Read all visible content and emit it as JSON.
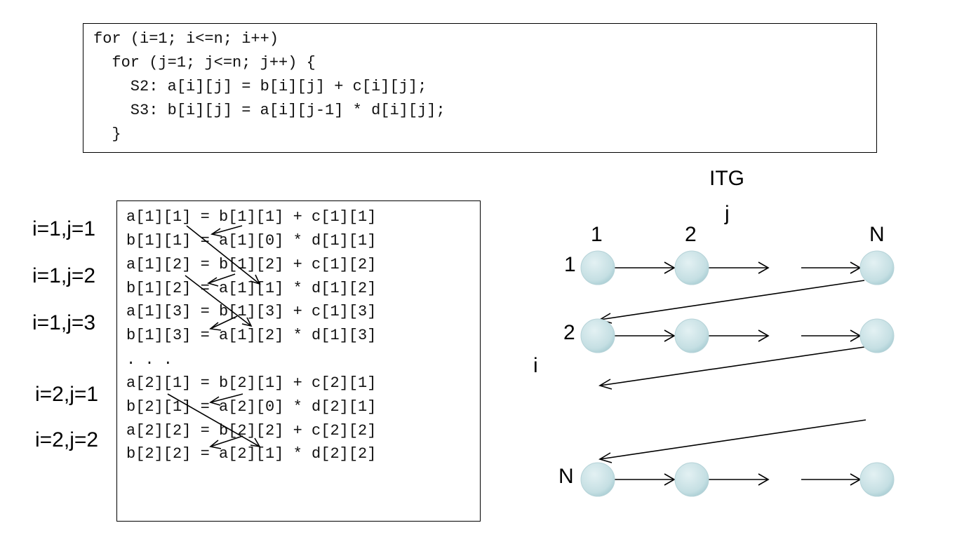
{
  "code": {
    "lines": [
      "for (i=1; i<=n; i++)",
      "  for (j=1; j<=n; j++) {",
      "    S2: a[i][j] = b[i][j] + c[i][j];",
      "    S3: b[i][j] = a[i][j-1] * d[i][j];",
      "  }"
    ]
  },
  "trace": {
    "lines": [
      "a[1][1] = b[1][1] + c[1][1]",
      "b[1][1] = a[1][0] * d[1][1]",
      "a[1][2] = b[1][2] + c[1][2]",
      "b[1][2] = a[1][1] * d[1][2]",
      "a[1][3] = b[1][3] + c[1][3]",
      "b[1][3] = a[1][2] * d[1][3]",
      ". . .",
      "a[2][1] = b[2][1] + c[2][1]",
      "b[2][1] = a[2][0] * d[2][1]",
      "a[2][2] = b[2][2] + c[2][2]",
      "b[2][2] = a[2][1] * d[2][2]"
    ],
    "iteration_labels": [
      "i=1,j=1",
      "i=1,j=2",
      "i=1,j=3",
      "i=2,j=1",
      "i=2,j=2"
    ]
  },
  "itg": {
    "title": "ITG",
    "j_label": "j",
    "i_label": "i",
    "col_labels": [
      "1",
      "2",
      "N"
    ],
    "row_labels": [
      "1",
      "2",
      "N"
    ],
    "node_color": "#c5dfe3"
  }
}
